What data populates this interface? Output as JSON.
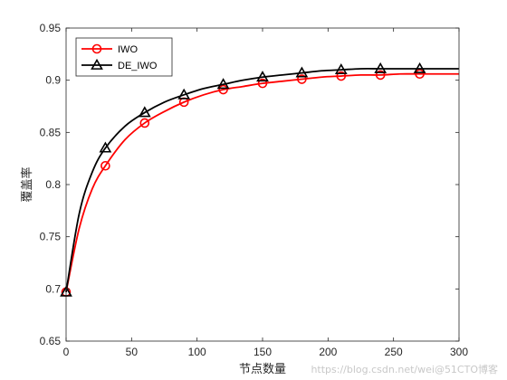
{
  "chart_data": {
    "type": "line",
    "xlabel": "节点数量",
    "ylabel": "覆盖率",
    "xlim": [
      0,
      300
    ],
    "ylim": [
      0.65,
      0.95
    ],
    "xticks": [
      0,
      50,
      100,
      150,
      200,
      250,
      300
    ],
    "yticks": [
      0.65,
      0.7,
      0.75,
      0.8,
      0.85,
      0.9,
      0.95
    ],
    "grid": false,
    "legend_position": "top-left",
    "series": [
      {
        "name": "IWO",
        "color": "#ff0000",
        "marker": "circle",
        "x": [
          0,
          10,
          20,
          30,
          45,
          60,
          75,
          90,
          105,
          120,
          135,
          150,
          165,
          180,
          195,
          210,
          225,
          240,
          255,
          270,
          285,
          300
        ],
        "y": [
          0.697,
          0.758,
          0.796,
          0.818,
          0.843,
          0.859,
          0.87,
          0.879,
          0.886,
          0.891,
          0.894,
          0.897,
          0.899,
          0.901,
          0.903,
          0.904,
          0.905,
          0.905,
          0.906,
          0.906,
          0.906,
          0.906
        ],
        "marker_x": [
          0,
          30,
          60,
          90,
          120,
          150,
          180,
          210,
          240,
          270
        ]
      },
      {
        "name": "DE_IWO",
        "color": "#000000",
        "marker": "triangle",
        "x": [
          0,
          10,
          20,
          30,
          45,
          60,
          75,
          90,
          105,
          120,
          135,
          150,
          165,
          180,
          195,
          210,
          225,
          240,
          255,
          270,
          285,
          300
        ],
        "y": [
          0.697,
          0.772,
          0.812,
          0.835,
          0.856,
          0.869,
          0.879,
          0.886,
          0.892,
          0.896,
          0.9,
          0.903,
          0.905,
          0.907,
          0.909,
          0.91,
          0.911,
          0.911,
          0.911,
          0.911,
          0.911,
          0.911
        ],
        "marker_x": [
          0,
          30,
          60,
          90,
          120,
          150,
          180,
          210,
          240,
          270
        ]
      }
    ]
  },
  "watermark": "https://blog.csdn.net/wei@51CTO博客"
}
